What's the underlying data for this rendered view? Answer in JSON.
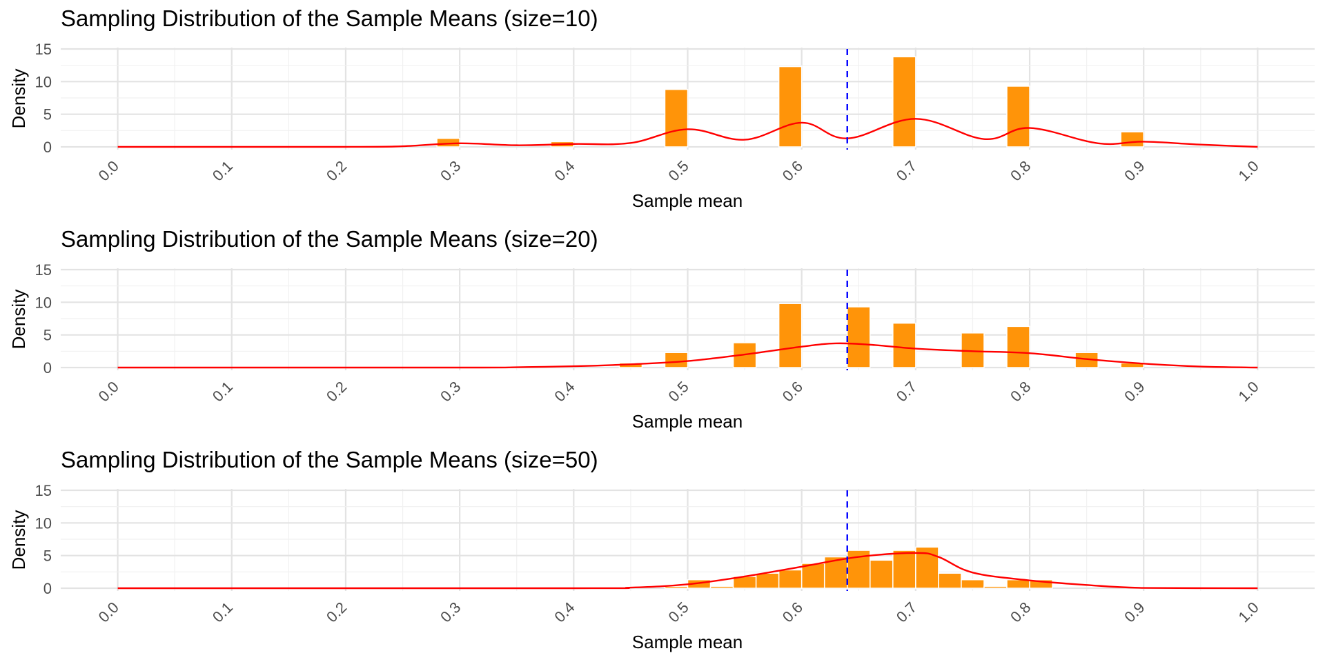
{
  "colors": {
    "bar_fill": "#FF9409",
    "bar_stroke": "#FFFFFF",
    "density_line": "#FF0000",
    "mean_line": "#0000FF",
    "grid_major": "#E3E3E3",
    "grid_minor": "#F1F1F1",
    "text": "#000000",
    "tick_text": "#4D4D4D"
  },
  "chart_data": [
    {
      "type": "bar",
      "title": "Sampling Distribution of the Sample Means (size=10)",
      "xlabel": "Sample mean",
      "ylabel": "Density",
      "xlim": [
        -0.05,
        1.05
      ],
      "ylim": [
        0,
        15
      ],
      "x_ticks": [
        "0.0",
        "0.1",
        "0.2",
        "0.3",
        "0.4",
        "0.5",
        "0.6",
        "0.7",
        "0.8",
        "0.9",
        "1.0"
      ],
      "y_ticks": [
        "0",
        "5",
        "10",
        "15"
      ],
      "bin_width": 0.02,
      "bars": [
        {
          "x": 0.29,
          "value": 1.3
        },
        {
          "x": 0.39,
          "value": 0.8
        },
        {
          "x": 0.49,
          "value": 8.8
        },
        {
          "x": 0.59,
          "value": 12.3
        },
        {
          "x": 0.69,
          "value": 13.8
        },
        {
          "x": 0.79,
          "value": 9.3
        },
        {
          "x": 0.89,
          "value": 2.3
        }
      ],
      "density_curve": {
        "x": [
          0.0,
          0.2,
          0.25,
          0.3,
          0.35,
          0.4,
          0.45,
          0.5,
          0.55,
          0.6,
          0.64,
          0.7,
          0.76,
          0.8,
          0.86,
          0.9,
          0.95,
          1.0
        ],
        "y": [
          0,
          0,
          0.1,
          0.55,
          0.25,
          0.45,
          0.6,
          2.7,
          1.1,
          3.7,
          1.3,
          4.3,
          1.2,
          2.9,
          0.55,
          0.8,
          0.35,
          0
        ]
      },
      "mean_line_x": 0.64,
      "grid": true,
      "legend": "none"
    },
    {
      "type": "bar",
      "title": "Sampling Distribution of the Sample Means (size=20)",
      "xlabel": "Sample mean",
      "ylabel": "Density",
      "xlim": [
        -0.05,
        1.05
      ],
      "ylim": [
        0,
        15
      ],
      "x_ticks": [
        "0.0",
        "0.1",
        "0.2",
        "0.3",
        "0.4",
        "0.5",
        "0.6",
        "0.7",
        "0.8",
        "0.9",
        "1.0"
      ],
      "y_ticks": [
        "0",
        "5",
        "10",
        "15"
      ],
      "bin_width": 0.02,
      "bars": [
        {
          "x": 0.45,
          "value": 0.7
        },
        {
          "x": 0.49,
          "value": 2.3
        },
        {
          "x": 0.55,
          "value": 3.8
        },
        {
          "x": 0.59,
          "value": 9.8
        },
        {
          "x": 0.65,
          "value": 9.3
        },
        {
          "x": 0.69,
          "value": 6.8
        },
        {
          "x": 0.75,
          "value": 5.3
        },
        {
          "x": 0.79,
          "value": 6.3
        },
        {
          "x": 0.85,
          "value": 2.3
        },
        {
          "x": 0.89,
          "value": 0.7
        }
      ],
      "density_curve": {
        "x": [
          0.0,
          0.3,
          0.35,
          0.4,
          0.45,
          0.5,
          0.55,
          0.6,
          0.63,
          0.66,
          0.7,
          0.75,
          0.8,
          0.85,
          0.9,
          0.95,
          1.0
        ],
        "y": [
          0,
          0,
          0.05,
          0.2,
          0.5,
          1.0,
          2.0,
          3.2,
          3.7,
          3.5,
          2.9,
          2.5,
          2.2,
          1.3,
          0.6,
          0.15,
          0
        ]
      },
      "mean_line_x": 0.64,
      "grid": true,
      "legend": "none"
    },
    {
      "type": "bar",
      "title": "Sampling Distribution of the Sample Means (size=50)",
      "xlabel": "Sample mean",
      "ylabel": "Density",
      "xlim": [
        -0.05,
        1.05
      ],
      "ylim": [
        0,
        15
      ],
      "x_ticks": [
        "0.0",
        "0.1",
        "0.2",
        "0.3",
        "0.4",
        "0.5",
        "0.6",
        "0.7",
        "0.8",
        "0.9",
        "1.0"
      ],
      "y_ticks": [
        "0",
        "5",
        "10",
        "15"
      ],
      "bin_width": 0.02,
      "bars": [
        {
          "x": 0.49,
          "value": 0.3
        },
        {
          "x": 0.51,
          "value": 1.3
        },
        {
          "x": 0.53,
          "value": 0.3
        },
        {
          "x": 0.55,
          "value": 1.8
        },
        {
          "x": 0.57,
          "value": 2.3
        },
        {
          "x": 0.59,
          "value": 2.8
        },
        {
          "x": 0.61,
          "value": 3.8
        },
        {
          "x": 0.63,
          "value": 4.8
        },
        {
          "x": 0.65,
          "value": 5.8
        },
        {
          "x": 0.67,
          "value": 4.3
        },
        {
          "x": 0.69,
          "value": 5.8
        },
        {
          "x": 0.71,
          "value": 6.3
        },
        {
          "x": 0.73,
          "value": 2.3
        },
        {
          "x": 0.75,
          "value": 1.3
        },
        {
          "x": 0.77,
          "value": 0.3
        },
        {
          "x": 0.79,
          "value": 1.3
        },
        {
          "x": 0.81,
          "value": 1.3
        }
      ],
      "density_curve": {
        "x": [
          0.0,
          0.4,
          0.45,
          0.5,
          0.55,
          0.6,
          0.65,
          0.7,
          0.72,
          0.75,
          0.8,
          0.85,
          0.9,
          1.0
        ],
        "y": [
          0,
          0,
          0.1,
          0.6,
          1.8,
          3.3,
          4.8,
          5.4,
          4.8,
          2.4,
          1.2,
          0.5,
          0.05,
          0
        ]
      },
      "mean_line_x": 0.64,
      "grid": true,
      "legend": "none"
    }
  ]
}
